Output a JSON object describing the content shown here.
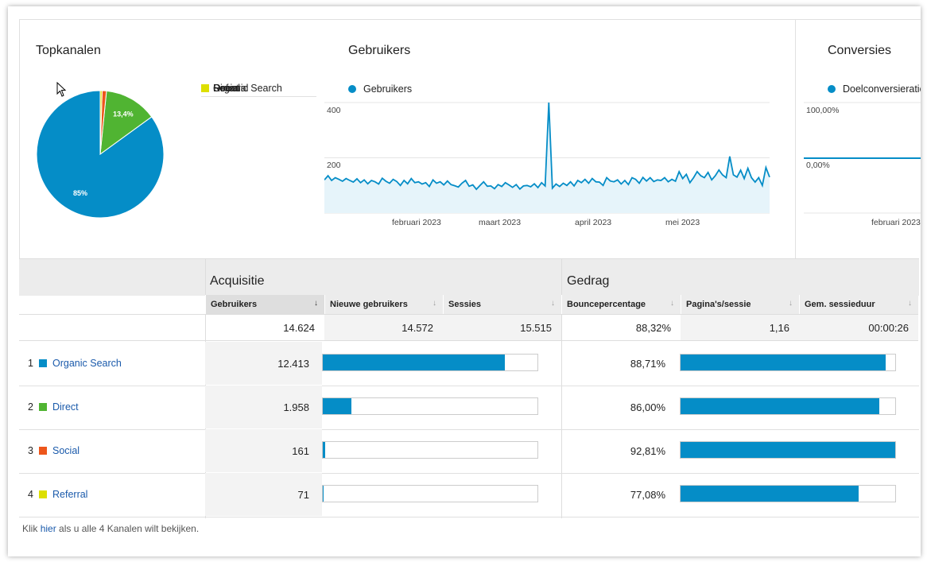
{
  "panels": {
    "top_channels": {
      "title": "Topkanalen",
      "legend": [
        {
          "label": "Organic Search",
          "color": "#058dc7"
        },
        {
          "label": "Direct",
          "color": "#50b432"
        },
        {
          "label": "Social",
          "color": "#ed561b"
        },
        {
          "label": "Referral",
          "color": "#dddf00"
        }
      ]
    },
    "users": {
      "title": "Gebruikers",
      "series_label": "Gebruikers",
      "y_ticks": [
        "400",
        "200"
      ],
      "x_ticks": [
        "februari 2023",
        "maart 2023",
        "april 2023",
        "mei 2023"
      ]
    },
    "conversions": {
      "title": "Conversies",
      "series_label": "Doelconversieratio",
      "y_ticks": [
        "100,00%",
        "0,00%"
      ],
      "x_ticks": [
        "februari 2023"
      ]
    }
  },
  "chart_data": [
    {
      "type": "pie",
      "title": "Topkanalen",
      "categories": [
        "Organic Search",
        "Direct",
        "Social",
        "Referral"
      ],
      "values": [
        12413,
        1958,
        161,
        71
      ],
      "labels": [
        "85%",
        "13,4%",
        "",
        ""
      ]
    },
    {
      "type": "area",
      "title": "Gebruikers",
      "series": [
        {
          "name": "Gebruikers",
          "values": [
            120,
            135,
            118,
            128,
            122,
            115,
            125,
            118,
            112,
            124,
            110,
            120,
            106,
            118,
            113,
            105,
            126,
            115,
            108,
            122,
            114,
            100,
            118,
            106,
            125,
            110,
            113,
            105,
            110,
            96,
            120,
            108,
            113,
            102,
            116,
            103,
            99,
            94,
            108,
            118,
            97,
            102,
            86,
            100,
            113,
            97,
            98,
            88,
            103,
            96,
            110,
            102,
            93,
            103,
            87,
            98,
            100,
            95,
            106,
            92,
            110,
            98,
            400,
            90,
            105,
            96,
            108,
            100,
            113,
            98,
            118,
            110,
            122,
            108,
            125,
            113,
            112,
            100,
            128,
            116,
            113,
            120,
            105,
            118,
            103,
            128,
            122,
            108,
            129,
            116,
            128,
            114,
            120,
            118,
            128,
            113,
            122,
            115,
            150,
            125,
            140,
            110,
            128,
            150,
            135,
            128,
            147,
            120,
            135,
            156,
            138,
            128,
            205,
            138,
            130,
            155,
            125,
            162,
            128,
            112,
            128,
            100,
            165,
            130
          ]
        }
      ],
      "x_range": [
        "2023-01-14",
        "2023-05-31"
      ],
      "ylim": [
        0,
        400
      ]
    },
    {
      "type": "line",
      "title": "Conversies",
      "series": [
        {
          "name": "Doelconversieratio",
          "values": [
            0,
            0,
            0,
            0
          ]
        }
      ],
      "ylim": [
        0,
        100
      ]
    }
  ],
  "table": {
    "groups": {
      "acquisition": "Acquisitie",
      "behavior": "Gedrag"
    },
    "columns": [
      "Gebruikers",
      "Nieuwe gebruikers",
      "Sessies",
      "Bouncepercentage",
      "Pagina's/sessie",
      "Gem. sessieduur"
    ],
    "sort_arrow": "↓",
    "totals": [
      "14.624",
      "14.572",
      "15.515",
      "88,32%",
      "1,16",
      "00:00:26"
    ],
    "rows": [
      {
        "index": "1",
        "name": "Organic Search",
        "color": "#058dc7",
        "users": "12.413",
        "users_share": 0.849,
        "bounce": "88,71%",
        "bounce_share": 0.955
      },
      {
        "index": "2",
        "name": "Direct",
        "color": "#50b432",
        "users": "1.958",
        "users_share": 0.134,
        "bounce": "86,00%",
        "bounce_share": 0.927
      },
      {
        "index": "3",
        "name": "Social",
        "color": "#ed561b",
        "users": "161",
        "users_share": 0.011,
        "bounce": "92,81%",
        "bounce_share": 1.0
      },
      {
        "index": "4",
        "name": "Referral",
        "color": "#dddf00",
        "users": "71",
        "users_share": 0.005,
        "bounce": "77,08%",
        "bounce_share": 0.83
      }
    ]
  },
  "footer": {
    "prefix": "Klik",
    "link": "hier",
    "suffix": "als u alle 4 Kanalen wilt bekijken."
  }
}
